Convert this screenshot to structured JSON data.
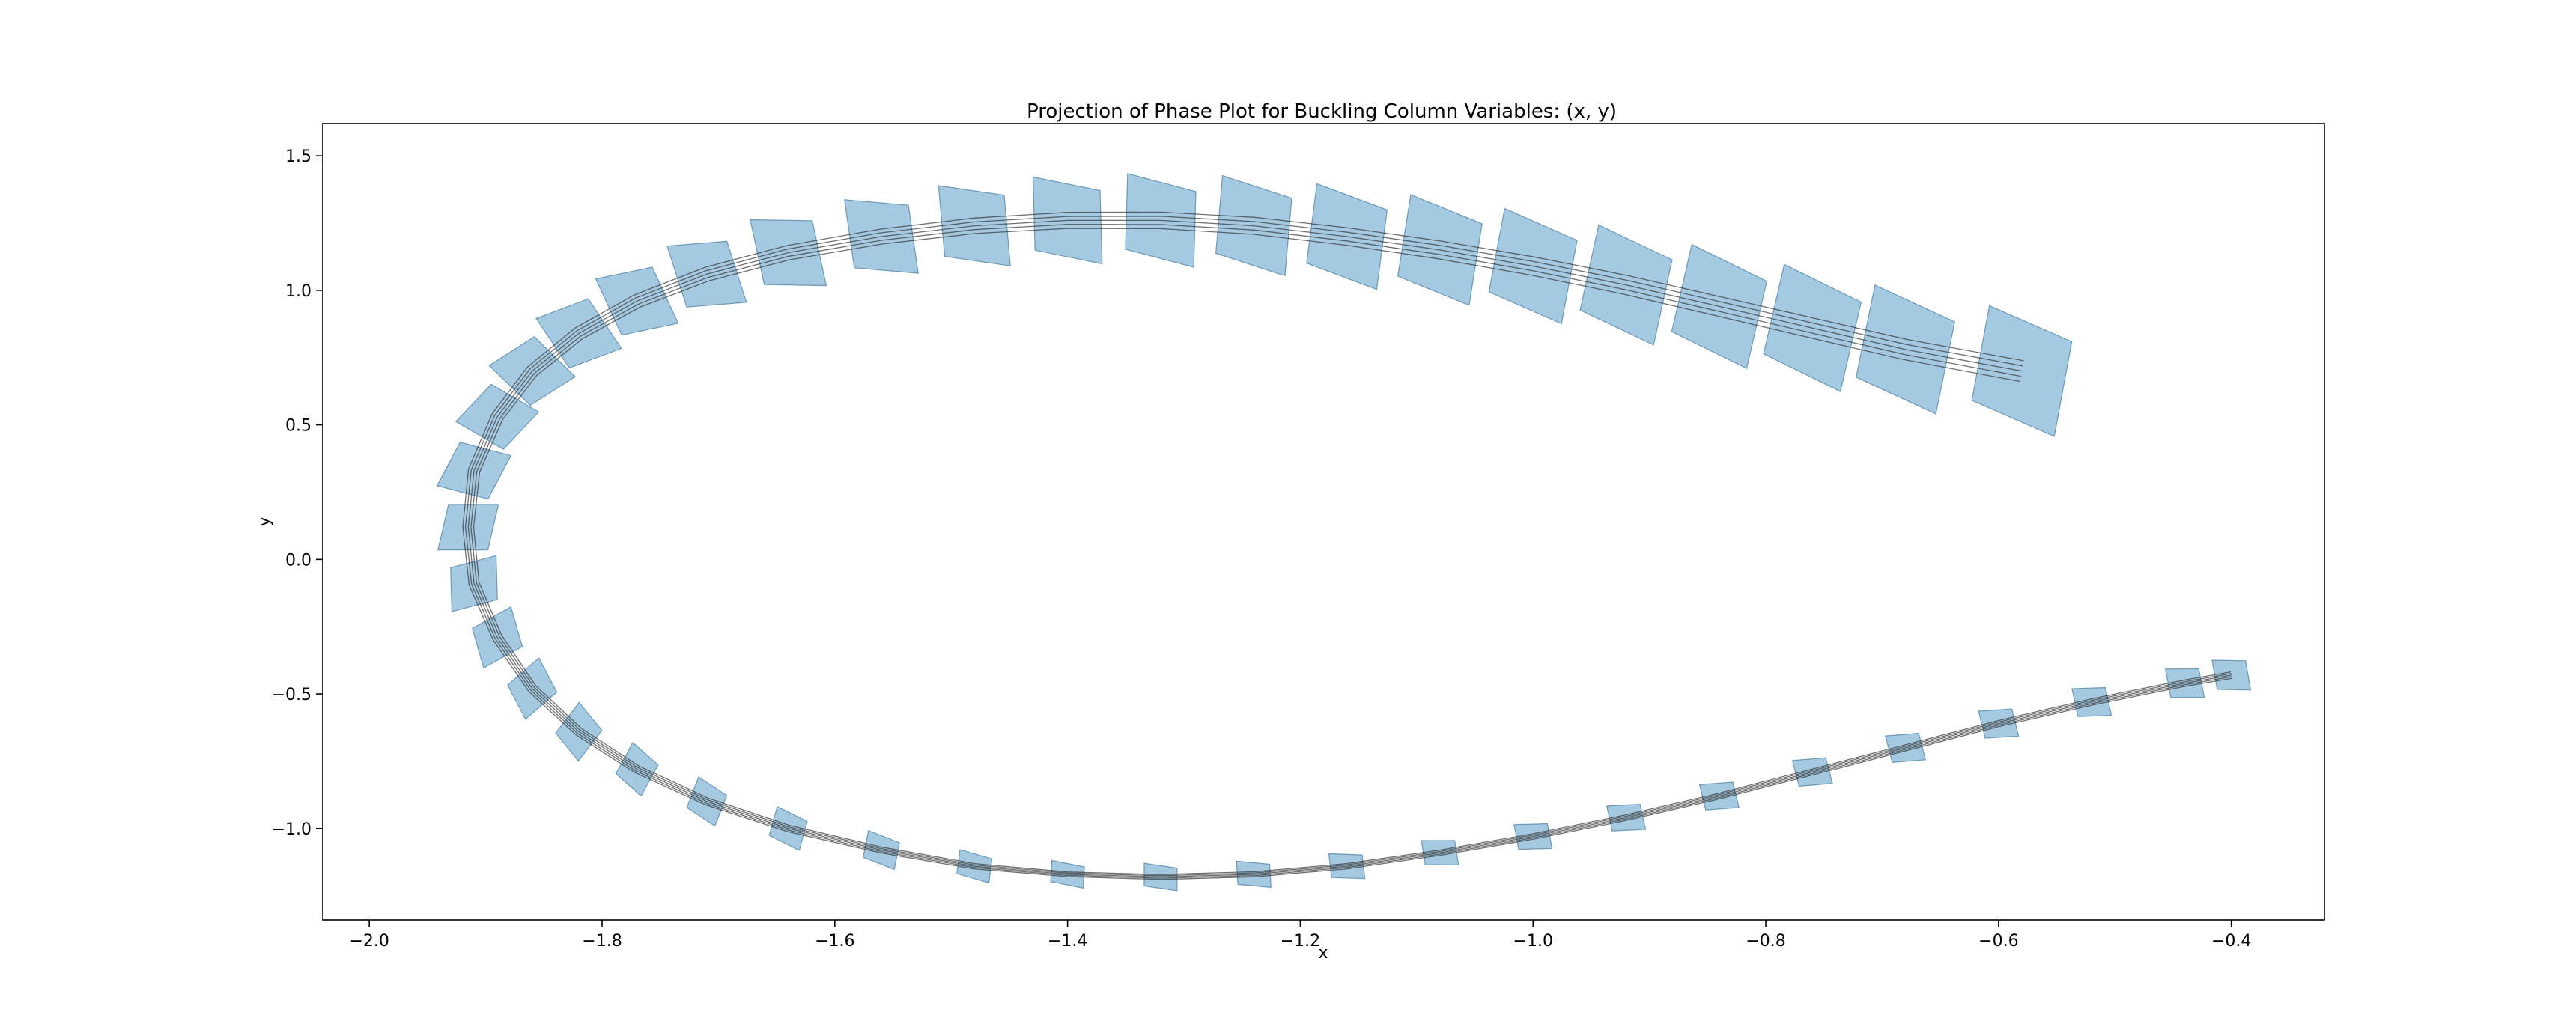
{
  "chart_data": {
    "type": "line",
    "title": "Projection of Phase Plot for Buckling Column Variables: (x, y)",
    "xlabel": "x",
    "ylabel": "y",
    "xlim": [
      -2.04,
      -0.32
    ],
    "ylim": [
      -1.34,
      1.62
    ],
    "xticks": [
      -2.0,
      -1.8,
      -1.6,
      -1.4,
      -1.2,
      -1.0,
      -0.8,
      -0.6,
      -0.4
    ],
    "xtick_labels": [
      "−2.0",
      "−1.8",
      "−1.6",
      "−1.4",
      "−1.2",
      "−1.0",
      "−0.8",
      "−0.6",
      "−0.4"
    ],
    "yticks": [
      -1.0,
      -0.5,
      0.0,
      0.5,
      1.0,
      1.5
    ],
    "ytick_labels": [
      "−1.0",
      "−0.5",
      "0.0",
      "0.5",
      "1.0",
      "1.5"
    ],
    "grid": false,
    "legend": "none",
    "colors": {
      "fill": "#1f77b4",
      "edge": "#1f5f8b",
      "trajectory": "#333333"
    },
    "series": [
      {
        "x": [
          -0.58,
          -0.68,
          -0.76,
          -0.84,
          -0.92,
          -1.0,
          -1.08,
          -1.16,
          -1.24,
          -1.32,
          -1.4,
          -1.48,
          -1.56,
          -1.64,
          -1.71,
          -1.77,
          -1.82,
          -1.86,
          -1.89,
          -1.91,
          -1.915,
          -1.91,
          -1.89,
          -1.86,
          -1.82,
          -1.77,
          -1.71,
          -1.64,
          -1.56,
          -1.48,
          -1.4,
          -1.32,
          -1.24,
          -1.16,
          -1.08,
          -1.0,
          -0.92,
          -0.84,
          -0.76,
          -0.68,
          -0.6,
          -0.52,
          -0.44,
          -0.4
        ],
        "y": [
          0.7,
          0.78,
          0.86,
          0.94,
          1.02,
          1.09,
          1.15,
          1.2,
          1.24,
          1.26,
          1.26,
          1.24,
          1.2,
          1.14,
          1.06,
          0.96,
          0.84,
          0.7,
          0.53,
          0.33,
          0.12,
          -0.09,
          -0.29,
          -0.48,
          -0.64,
          -0.78,
          -0.9,
          -1.0,
          -1.08,
          -1.14,
          -1.17,
          -1.18,
          -1.17,
          -1.14,
          -1.09,
          -1.03,
          -0.96,
          -0.88,
          -0.79,
          -0.7,
          -0.61,
          -0.53,
          -0.46,
          -0.43
        ]
      }
    ]
  }
}
